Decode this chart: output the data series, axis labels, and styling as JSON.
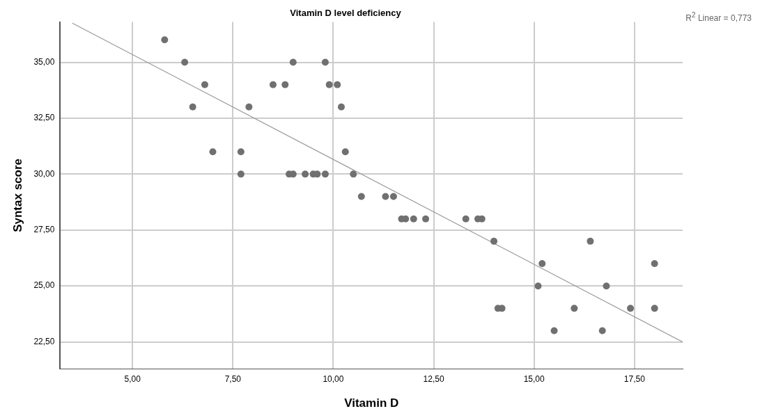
{
  "chart_data": {
    "type": "scatter",
    "title": "Vitamin D level deficiency",
    "xlabel": "Vitamin D",
    "ylabel": "Syntax score",
    "annotations": [
      "R$^{2}$ Linear = 0,773"
    ],
    "xlim": [
      3.2,
      18.7
    ],
    "ylim": [
      21.3,
      36.8
    ],
    "xticks": [
      {
        "value": 5,
        "label": "5,00"
      },
      {
        "value": 7.5,
        "label": "7,50"
      },
      {
        "value": 10,
        "label": "10,00"
      },
      {
        "value": 12.5,
        "label": "12,50"
      },
      {
        "value": 15,
        "label": "15,00"
      },
      {
        "value": 17.5,
        "label": "17,50"
      }
    ],
    "yticks": [
      {
        "value": 22.5,
        "label": "22,50"
      },
      {
        "value": 25,
        "label": "25,00"
      },
      {
        "value": 27.5,
        "label": "27,50"
      },
      {
        "value": 30,
        "label": "30,00"
      },
      {
        "value": 32.5,
        "label": "32,50"
      },
      {
        "value": 35,
        "label": "35,00"
      }
    ],
    "grid": true,
    "legend": false,
    "marker": "circle",
    "series": [
      {
        "color": "#707070",
        "x": [
          5.8,
          6.3,
          6.8,
          6.5,
          7.0,
          7.7,
          7.7,
          7.9,
          8.5,
          8.8,
          9.0,
          8.9,
          9.0,
          9.3,
          9.5,
          9.6,
          9.8,
          9.8,
          9.9,
          10.1,
          10.2,
          10.3,
          10.5,
          10.7,
          11.3,
          11.5,
          11.7,
          11.8,
          12.0,
          12.3,
          13.3,
          13.6,
          13.7,
          14.0,
          14.1,
          14.2,
          15.1,
          15.2,
          15.5,
          16.0,
          16.4,
          16.7,
          16.8,
          17.4,
          18.0,
          18.0
        ],
        "values": [
          36,
          35,
          34,
          33,
          31,
          31,
          30,
          33,
          34,
          34,
          35,
          30,
          30,
          30,
          30,
          30,
          30,
          35,
          34,
          34,
          33,
          31,
          30,
          29,
          29,
          29,
          28,
          28,
          28,
          28,
          28,
          28,
          28,
          27,
          24,
          24,
          25,
          26,
          23,
          24,
          27,
          23,
          25,
          24,
          26,
          24
        ]
      },
      {
        "type": "line",
        "color": "#999999",
        "line_style": "solid",
        "marker": "none",
        "x": [
          3.5,
          18.7
        ],
        "values": [
          36.75,
          22.5
        ]
      }
    ]
  }
}
